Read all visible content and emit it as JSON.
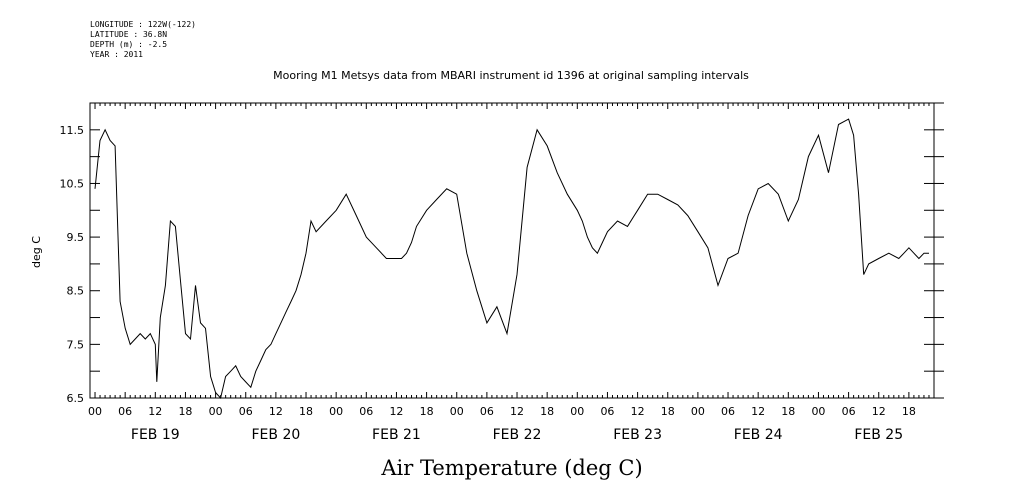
{
  "header": {
    "longitude": "LONGITUDE : 122W(-122)",
    "latitude": "LATITUDE : 36.8N",
    "depth": "DEPTH (m) : -2.5",
    "year": "YEAR : 2011"
  },
  "chart_data": {
    "type": "line",
    "title": "Mooring M1 Metsys data from MBARI instrument id 1396 at original sampling intervals",
    "xlabel": "Air Temperature (deg C)",
    "ylabel": "deg C",
    "ylim": [
      6.5,
      12.0
    ],
    "y_ticks": [
      "6.5",
      "7.5",
      "8.5",
      "9.5",
      "10.5",
      "11.5"
    ],
    "x_hour_ticks": [
      "00",
      "06",
      "12",
      "18",
      "00",
      "06",
      "12",
      "18",
      "00",
      "06",
      "12",
      "18",
      "00",
      "06",
      "12",
      "18",
      "00",
      "06",
      "12",
      "18",
      "00",
      "06",
      "12",
      "18",
      "00",
      "06",
      "12",
      "18"
    ],
    "x_day_labels": [
      "FEB 19",
      "FEB 20",
      "FEB 21",
      "FEB 22",
      "FEB 23",
      "FEB 24",
      "FEB 25"
    ],
    "xlim_hours": [
      -1,
      167
    ],
    "grid": false,
    "series": [
      {
        "x_hours": [
          0,
          1,
          2,
          3,
          4,
          5,
          6,
          7,
          8,
          9,
          10,
          11,
          12,
          12.3,
          13,
          14,
          15,
          16,
          17,
          18,
          19,
          20,
          21,
          22,
          23,
          24,
          25,
          26,
          27,
          28,
          29,
          30,
          31,
          32,
          33,
          34,
          35,
          36,
          37,
          38,
          39,
          40,
          41,
          42,
          43,
          44,
          46,
          48,
          50,
          52,
          54,
          56,
          58,
          60,
          61,
          62,
          63,
          64,
          66,
          68,
          70,
          72,
          74,
          76,
          78,
          80,
          82,
          84,
          86,
          88,
          90,
          92,
          94,
          96,
          97,
          98,
          99,
          100,
          101,
          102,
          104,
          106,
          108,
          110,
          112,
          114,
          116,
          118,
          120,
          122,
          124,
          126,
          128,
          130,
          132,
          134,
          136,
          138,
          140,
          142,
          144,
          146,
          148,
          150,
          151,
          152,
          153,
          154,
          156,
          158,
          160,
          161,
          162,
          163,
          164,
          165,
          166
        ],
        "values": [
          10.4,
          11.3,
          11.5,
          11.3,
          11.2,
          8.3,
          7.8,
          7.5,
          7.6,
          7.7,
          7.6,
          7.7,
          7.5,
          6.8,
          8.0,
          8.6,
          9.8,
          9.7,
          8.7,
          7.7,
          7.6,
          8.6,
          7.9,
          7.8,
          6.9,
          6.6,
          6.5,
          6.9,
          7.0,
          7.1,
          6.9,
          6.8,
          6.7,
          7.0,
          7.2,
          7.4,
          7.5,
          7.7,
          7.9,
          8.1,
          8.3,
          8.5,
          8.8,
          9.2,
          9.8,
          9.6,
          9.8,
          10.0,
          10.3,
          9.9,
          9.5,
          9.3,
          9.1,
          9.1,
          9.1,
          9.2,
          9.4,
          9.7,
          10.0,
          10.2,
          10.4,
          10.3,
          9.2,
          8.5,
          7.9,
          8.2,
          7.7,
          8.8,
          10.8,
          11.5,
          11.2,
          10.7,
          10.3,
          10.0,
          9.8,
          9.5,
          9.3,
          9.2,
          9.4,
          9.6,
          9.8,
          9.7,
          10.0,
          10.3,
          10.3,
          10.2,
          10.1,
          9.9,
          9.6,
          9.3,
          8.6,
          9.1,
          9.2,
          9.9,
          10.4,
          10.5,
          10.3,
          9.8,
          10.2,
          11.0,
          11.4,
          10.7,
          11.6,
          11.7,
          11.4,
          10.3,
          8.8,
          9.0,
          9.1,
          9.2,
          9.1,
          9.2,
          9.3,
          9.2,
          9.1,
          9.2,
          9.2
        ]
      }
    ]
  }
}
